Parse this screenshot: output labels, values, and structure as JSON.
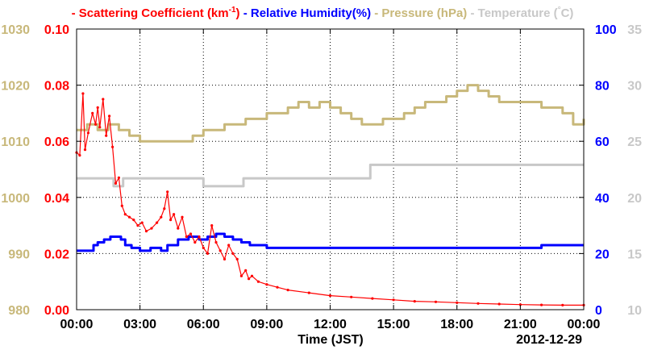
{
  "chart_data": {
    "type": "line",
    "title": "",
    "legend_placement": "top",
    "legend": [
      {
        "label": "Scattering Coefficient (km",
        "sup": "-1",
        "tail": ")",
        "color": "#ff0000"
      },
      {
        "label": "Relative Humidity(%)",
        "sup": "",
        "tail": "",
        "color": "#0000ff"
      },
      {
        "label": "Pressure (hPa)",
        "sup": "",
        "tail": "",
        "color": "#c8b87a"
      },
      {
        "label": "Temperature (",
        "sup": "°",
        "tail": "C)",
        "color": "#c8c8c8"
      }
    ],
    "xlabel": "Time (JST)",
    "date_label": "2012-12-29",
    "x_ticks": [
      "00:00",
      "03:00",
      "06:00",
      "09:00",
      "12:00",
      "15:00",
      "18:00",
      "21:00",
      "00:00"
    ],
    "xlim_hours": [
      0,
      24
    ],
    "grid": true,
    "axes": {
      "pressure": {
        "side": "outer-left",
        "range": [
          980,
          1030
        ],
        "ticks": [
          "980",
          "990",
          "1000",
          "1010",
          "1020",
          "1030"
        ],
        "color": "#c8b87a"
      },
      "scattering": {
        "side": "inner-left",
        "range": [
          0,
          0.1
        ],
        "ticks": [
          "0.00",
          "0.02",
          "0.04",
          "0.06",
          "0.08",
          "0.10"
        ],
        "color": "#ff0000"
      },
      "humidity": {
        "side": "inner-right",
        "range": [
          0,
          100
        ],
        "ticks": [
          "0",
          "20",
          "40",
          "60",
          "80",
          "100"
        ],
        "color": "#0000ff"
      },
      "temperature": {
        "side": "outer-right",
        "range": [
          10,
          35
        ],
        "ticks": [
          "10",
          "15",
          "20",
          "25",
          "30",
          "35"
        ],
        "color": "#c8c8c8"
      }
    },
    "series": [
      {
        "name": "Scattering Coefficient (km-1)",
        "axis": "scattering",
        "color": "#ff0000",
        "markers": true,
        "points": [
          [
            0,
            0.056
          ],
          [
            0.15,
            0.055
          ],
          [
            0.3,
            0.077
          ],
          [
            0.4,
            0.057
          ],
          [
            0.55,
            0.063
          ],
          [
            0.75,
            0.07
          ],
          [
            0.9,
            0.066
          ],
          [
            1.0,
            0.072
          ],
          [
            1.1,
            0.065
          ],
          [
            1.25,
            0.075
          ],
          [
            1.4,
            0.062
          ],
          [
            1.55,
            0.069
          ],
          [
            1.7,
            0.058
          ],
          [
            1.85,
            0.045
          ],
          [
            2.0,
            0.047
          ],
          [
            2.15,
            0.037
          ],
          [
            2.3,
            0.034
          ],
          [
            2.5,
            0.033
          ],
          [
            2.7,
            0.032
          ],
          [
            2.9,
            0.03
          ],
          [
            3.1,
            0.031
          ],
          [
            3.3,
            0.028
          ],
          [
            3.55,
            0.029
          ],
          [
            3.8,
            0.031
          ],
          [
            4.0,
            0.033
          ],
          [
            4.15,
            0.036
          ],
          [
            4.3,
            0.042
          ],
          [
            4.45,
            0.032
          ],
          [
            4.6,
            0.034
          ],
          [
            4.8,
            0.029
          ],
          [
            5.0,
            0.033
          ],
          [
            5.2,
            0.026
          ],
          [
            5.4,
            0.027
          ],
          [
            5.6,
            0.024
          ],
          [
            5.8,
            0.026
          ],
          [
            6.0,
            0.022
          ],
          [
            6.2,
            0.02
          ],
          [
            6.4,
            0.03
          ],
          [
            6.6,
            0.024
          ],
          [
            6.8,
            0.021
          ],
          [
            7.0,
            0.018
          ],
          [
            7.2,
            0.023
          ],
          [
            7.4,
            0.02
          ],
          [
            7.6,
            0.018
          ],
          [
            7.8,
            0.012
          ],
          [
            8.0,
            0.014
          ],
          [
            8.15,
            0.011
          ],
          [
            8.3,
            0.012
          ],
          [
            8.6,
            0.01
          ],
          [
            9.0,
            0.009
          ],
          [
            9.5,
            0.008
          ],
          [
            10.0,
            0.007
          ],
          [
            11.0,
            0.006
          ],
          [
            12.0,
            0.005
          ],
          [
            13.0,
            0.0045
          ],
          [
            14.0,
            0.004
          ],
          [
            15.0,
            0.0035
          ],
          [
            16.0,
            0.003
          ],
          [
            17.0,
            0.0028
          ],
          [
            18.0,
            0.0025
          ],
          [
            19.0,
            0.0022
          ],
          [
            20.0,
            0.002
          ],
          [
            21.0,
            0.0018
          ],
          [
            22.0,
            0.0017
          ],
          [
            23.0,
            0.0016
          ],
          [
            24.0,
            0.0016
          ]
        ]
      },
      {
        "name": "Relative Humidity(%)",
        "axis": "humidity",
        "color": "#0000ff",
        "markers": false,
        "points": [
          [
            0,
            21
          ],
          [
            0.5,
            21
          ],
          [
            0.8,
            23
          ],
          [
            1.0,
            24
          ],
          [
            1.3,
            25
          ],
          [
            1.6,
            26
          ],
          [
            1.9,
            26
          ],
          [
            2.1,
            25
          ],
          [
            2.3,
            23
          ],
          [
            2.6,
            22
          ],
          [
            3.0,
            21
          ],
          [
            3.5,
            22
          ],
          [
            4.0,
            21
          ],
          [
            4.3,
            23
          ],
          [
            4.8,
            25
          ],
          [
            5.3,
            26
          ],
          [
            5.8,
            25
          ],
          [
            6.2,
            26
          ],
          [
            6.6,
            27
          ],
          [
            7.0,
            26
          ],
          [
            7.4,
            25
          ],
          [
            7.8,
            24
          ],
          [
            8.2,
            23
          ],
          [
            8.8,
            23
          ],
          [
            9.0,
            22
          ],
          [
            12.0,
            22
          ],
          [
            15.0,
            22
          ],
          [
            18.0,
            22
          ],
          [
            21.0,
            22
          ],
          [
            22.0,
            23
          ],
          [
            24.0,
            23
          ]
        ]
      },
      {
        "name": "Pressure (hPa)",
        "axis": "pressure",
        "color": "#c8b87a",
        "markers": false,
        "points": [
          [
            0,
            1012
          ],
          [
            0.5,
            1013
          ],
          [
            1.0,
            1012
          ],
          [
            1.5,
            1013
          ],
          [
            2.0,
            1012
          ],
          [
            2.5,
            1011
          ],
          [
            3.0,
            1010
          ],
          [
            4.0,
            1010
          ],
          [
            5.0,
            1010
          ],
          [
            5.5,
            1011
          ],
          [
            6.0,
            1012
          ],
          [
            6.5,
            1012
          ],
          [
            7.0,
            1013
          ],
          [
            7.5,
            1013
          ],
          [
            8.0,
            1014
          ],
          [
            8.5,
            1014
          ],
          [
            9.0,
            1015
          ],
          [
            9.5,
            1015
          ],
          [
            10.0,
            1016
          ],
          [
            10.5,
            1017
          ],
          [
            11.0,
            1016
          ],
          [
            11.5,
            1017
          ],
          [
            12.0,
            1016
          ],
          [
            12.5,
            1015
          ],
          [
            13.0,
            1014
          ],
          [
            13.5,
            1013
          ],
          [
            14.0,
            1013
          ],
          [
            14.5,
            1014
          ],
          [
            15.0,
            1014
          ],
          [
            15.5,
            1015
          ],
          [
            16.0,
            1016
          ],
          [
            16.5,
            1017
          ],
          [
            17.0,
            1017
          ],
          [
            17.5,
            1018
          ],
          [
            18.0,
            1019
          ],
          [
            18.5,
            1020
          ],
          [
            19.0,
            1019
          ],
          [
            19.5,
            1018
          ],
          [
            20.0,
            1017
          ],
          [
            21.0,
            1017
          ],
          [
            22.0,
            1016
          ],
          [
            23.0,
            1015
          ],
          [
            23.5,
            1013
          ],
          [
            24.0,
            1014
          ]
        ]
      },
      {
        "name": "Temperature (C)",
        "axis": "temperature",
        "color": "#c8c8c8",
        "markers": false,
        "points": [
          [
            0,
            21.7
          ],
          [
            1.5,
            21.7
          ],
          [
            1.75,
            21.0
          ],
          [
            2.2,
            21.7
          ],
          [
            5.8,
            21.7
          ],
          [
            6.0,
            21.0
          ],
          [
            7.7,
            21.0
          ],
          [
            7.9,
            21.7
          ],
          [
            13.7,
            21.7
          ],
          [
            13.9,
            22.9
          ],
          [
            24.0,
            22.9
          ]
        ]
      }
    ]
  }
}
